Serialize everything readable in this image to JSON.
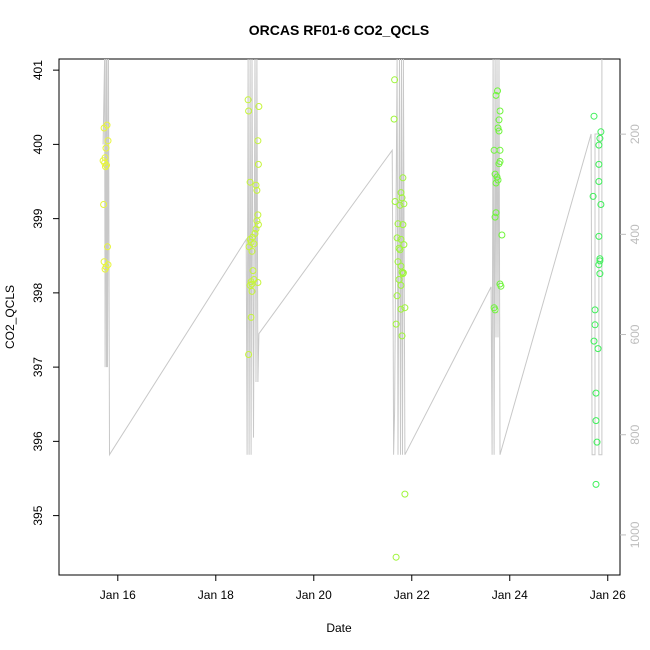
{
  "chart_data": {
    "type": "scatter",
    "title": "ORCAS RF01-6 CO2_QCLS",
    "xlabel": "Date",
    "ylabel": "CO2_QCLS",
    "x_ticks": [
      {
        "label": "Jan 16",
        "day": 16
      },
      {
        "label": "Jan 18",
        "day": 18
      },
      {
        "label": "Jan 20",
        "day": 20
      },
      {
        "label": "Jan 22",
        "day": 22
      },
      {
        "label": "Jan 24",
        "day": 24
      },
      {
        "label": "Jan 26",
        "day": 26
      }
    ],
    "xlim": [
      14.8,
      26.25
    ],
    "ylim": [
      394.2,
      401.15
    ],
    "y_ticks": [
      395,
      396,
      397,
      398,
      399,
      400,
      401
    ],
    "y2_label": "",
    "y2_ticks": [
      200,
      400,
      600,
      800,
      1000
    ],
    "y2lim": [
      50,
      1080
    ],
    "grid": false,
    "colors": {
      "pressure_line": "#c8c8c8",
      "axis": "#000000",
      "right_axis": "#bdbdbd"
    },
    "series": [
      {
        "color": "#e8f53a",
        "points": [
          [
            15.72,
            400.22
          ],
          [
            15.78,
            400.26
          ],
          [
            15.8,
            400.05
          ],
          [
            15.76,
            399.95
          ],
          [
            15.74,
            399.82
          ],
          [
            15.7,
            399.78
          ],
          [
            15.73,
            399.75
          ],
          [
            15.77,
            399.72
          ],
          [
            15.75,
            399.7
          ],
          [
            15.71,
            399.19
          ],
          [
            15.79,
            398.62
          ],
          [
            15.72,
            398.42
          ],
          [
            15.8,
            398.38
          ],
          [
            15.76,
            398.35
          ],
          [
            15.74,
            398.32
          ]
        ]
      },
      {
        "color": "#c6f53a",
        "points": [
          [
            18.66,
            400.6
          ],
          [
            18.67,
            400.45
          ],
          [
            18.88,
            400.51
          ],
          [
            18.86,
            400.05
          ],
          [
            18.87,
            399.73
          ],
          [
            18.7,
            399.49
          ],
          [
            18.82,
            399.45
          ],
          [
            18.84,
            399.38
          ],
          [
            18.86,
            399.05
          ],
          [
            18.84,
            398.97
          ],
          [
            18.87,
            398.92
          ],
          [
            18.82,
            398.86
          ],
          [
            18.8,
            398.8
          ],
          [
            18.75,
            398.75
          ],
          [
            18.7,
            398.72
          ],
          [
            18.72,
            398.68
          ],
          [
            18.78,
            398.66
          ],
          [
            18.68,
            398.62
          ],
          [
            18.74,
            398.56
          ],
          [
            18.76,
            398.3
          ],
          [
            18.78,
            398.18
          ],
          [
            18.72,
            398.15
          ],
          [
            18.74,
            398.12
          ],
          [
            18.86,
            398.14
          ],
          [
            18.7,
            398.1
          ],
          [
            18.74,
            398.02
          ],
          [
            18.72,
            397.67
          ],
          [
            18.67,
            397.17
          ]
        ]
      },
      {
        "color": "#9ff53a",
        "points": [
          [
            21.65,
            400.87
          ],
          [
            21.64,
            400.34
          ],
          [
            21.82,
            399.55
          ],
          [
            21.78,
            399.35
          ],
          [
            21.8,
            399.28
          ],
          [
            21.84,
            399.2
          ],
          [
            21.66,
            399.23
          ],
          [
            21.76,
            399.18
          ],
          [
            21.72,
            398.93
          ],
          [
            21.82,
            398.92
          ],
          [
            21.7,
            398.74
          ],
          [
            21.78,
            398.72
          ],
          [
            21.84,
            398.65
          ],
          [
            21.74,
            398.6
          ],
          [
            21.76,
            398.58
          ],
          [
            21.72,
            398.42
          ],
          [
            21.78,
            398.36
          ],
          [
            21.8,
            398.28
          ],
          [
            21.83,
            398.27
          ],
          [
            21.82,
            398.26
          ],
          [
            21.74,
            398.18
          ],
          [
            21.78,
            398.1
          ],
          [
            21.7,
            397.96
          ],
          [
            21.86,
            397.8
          ],
          [
            21.78,
            397.78
          ],
          [
            21.68,
            397.58
          ],
          [
            21.8,
            397.42
          ],
          [
            21.86,
            395.29
          ],
          [
            21.68,
            394.44
          ]
        ]
      },
      {
        "color": "#6ff53a",
        "points": [
          [
            23.75,
            400.72
          ],
          [
            23.72,
            400.66
          ],
          [
            23.8,
            400.45
          ],
          [
            23.78,
            400.33
          ],
          [
            23.76,
            400.22
          ],
          [
            23.78,
            400.18
          ],
          [
            23.68,
            399.92
          ],
          [
            23.8,
            399.92
          ],
          [
            23.8,
            399.77
          ],
          [
            23.78,
            399.74
          ],
          [
            23.7,
            399.6
          ],
          [
            23.74,
            399.56
          ],
          [
            23.76,
            399.52
          ],
          [
            23.72,
            399.48
          ],
          [
            23.72,
            399.08
          ],
          [
            23.7,
            399.02
          ],
          [
            23.84,
            398.78
          ],
          [
            23.8,
            398.12
          ],
          [
            23.82,
            398.09
          ],
          [
            23.68,
            397.8
          ],
          [
            23.7,
            397.77
          ]
        ]
      },
      {
        "color": "#3ff05a",
        "points": [
          [
            25.72,
            400.38
          ],
          [
            25.86,
            400.17
          ],
          [
            25.84,
            400.08
          ],
          [
            25.82,
            399.99
          ],
          [
            25.82,
            399.73
          ],
          [
            25.82,
            399.5
          ],
          [
            25.7,
            399.3
          ],
          [
            25.86,
            399.19
          ],
          [
            25.82,
            398.76
          ],
          [
            25.84,
            398.46
          ],
          [
            25.84,
            398.43
          ],
          [
            25.82,
            398.38
          ],
          [
            25.84,
            398.26
          ],
          [
            25.74,
            397.77
          ],
          [
            25.74,
            397.57
          ],
          [
            25.72,
            397.35
          ],
          [
            25.8,
            397.25
          ],
          [
            25.76,
            396.65
          ],
          [
            25.76,
            396.28
          ],
          [
            25.78,
            395.99
          ],
          [
            25.76,
            395.42
          ]
        ]
      }
    ],
    "pressure_line": [
      [
        15.7,
        400.0
      ],
      [
        15.73,
        401.15
      ],
      [
        15.74,
        397.0
      ],
      [
        15.76,
        401.15
      ],
      [
        15.77,
        397.0
      ],
      [
        15.78,
        401.15
      ],
      [
        15.79,
        397.0
      ],
      [
        15.81,
        401.15
      ],
      [
        15.83,
        395.82
      ],
      [
        18.62,
        398.72
      ],
      [
        18.64,
        395.82
      ],
      [
        18.66,
        401.15
      ],
      [
        18.68,
        395.82
      ],
      [
        18.7,
        401.15
      ],
      [
        18.72,
        395.82
      ],
      [
        18.74,
        401.15
      ],
      [
        18.77,
        396.05
      ],
      [
        18.8,
        401.15
      ],
      [
        18.82,
        396.8
      ],
      [
        18.84,
        401.15
      ],
      [
        18.86,
        396.8
      ],
      [
        18.88,
        397.45
      ],
      [
        21.6,
        399.92
      ],
      [
        21.62,
        397.45
      ],
      [
        21.63,
        395.82
      ],
      [
        21.65,
        396.4
      ],
      [
        21.7,
        401.15
      ],
      [
        21.72,
        395.82
      ],
      [
        21.75,
        401.15
      ],
      [
        21.77,
        395.82
      ],
      [
        21.79,
        401.15
      ],
      [
        21.81,
        395.82
      ],
      [
        21.83,
        401.15
      ],
      [
        21.86,
        395.82
      ],
      [
        23.62,
        398.08
      ],
      [
        23.64,
        395.82
      ],
      [
        23.66,
        401.15
      ],
      [
        23.68,
        395.82
      ],
      [
        23.7,
        401.15
      ],
      [
        23.72,
        397.4
      ],
      [
        23.74,
        401.15
      ],
      [
        23.76,
        397.4
      ],
      [
        23.78,
        401.15
      ],
      [
        23.8,
        395.82
      ],
      [
        25.66,
        400.14
      ],
      [
        25.68,
        395.82
      ],
      [
        25.74,
        395.82
      ],
      [
        25.74,
        400.14
      ],
      [
        25.82,
        400.14
      ],
      [
        25.82,
        395.82
      ],
      [
        25.88,
        395.82
      ],
      [
        25.88,
        401.15
      ]
    ]
  }
}
